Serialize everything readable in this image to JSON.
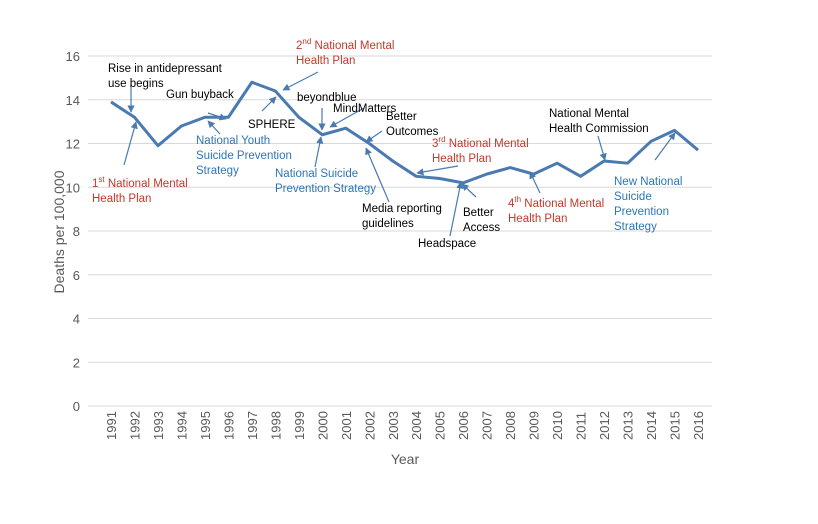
{
  "chart_data": {
    "type": "line",
    "title": "",
    "xlabel": "Year",
    "ylabel": "Deaths per 100,000",
    "ylim": [
      0,
      16
    ],
    "yticks": [
      0,
      2,
      4,
      6,
      8,
      10,
      12,
      14,
      16
    ],
    "grid": true,
    "x": [
      1991,
      1992,
      1993,
      1994,
      1995,
      1996,
      1997,
      1998,
      1999,
      2000,
      2001,
      2002,
      2003,
      2004,
      2005,
      2006,
      2007,
      2008,
      2009,
      2010,
      2011,
      2012,
      2013,
      2014,
      2015,
      2016
    ],
    "values": [
      13.9,
      13.2,
      11.9,
      12.8,
      13.2,
      13.2,
      14.8,
      14.4,
      13.2,
      12.4,
      12.7,
      12.0,
      11.2,
      10.5,
      10.4,
      10.2,
      10.6,
      10.9,
      10.6,
      11.1,
      10.5,
      11.2,
      11.1,
      12.1,
      12.6,
      11.7
    ],
    "line_color": "#4a7ab0",
    "colors": {
      "black": "#000000",
      "red": "#c0392b",
      "blue": "#2e75b6"
    },
    "annotations": [
      {
        "year": 1992,
        "lines": [
          "Rise in antidepressant",
          "use begins"
        ],
        "color": "black"
      },
      {
        "year": 1992,
        "lines": [
          "1st National Mental",
          "Health Plan"
        ],
        "sup": "st",
        "color": "red"
      },
      {
        "year": 1996,
        "lines": [
          "Gun buyback"
        ],
        "color": "black"
      },
      {
        "year": 1995,
        "lines": [
          "National Youth",
          "Suicide Prevention",
          "Strategy"
        ],
        "color": "blue"
      },
      {
        "year": 1998,
        "lines": [
          "SPHERE"
        ],
        "color": "black"
      },
      {
        "year": 1998,
        "lines": [
          "2nd National Mental",
          "Health Plan"
        ],
        "sup": "nd",
        "color": "red"
      },
      {
        "year": 2000,
        "lines": [
          "beyondblue"
        ],
        "color": "black"
      },
      {
        "year": 2000,
        "lines": [
          "MindMatters"
        ],
        "color": "black"
      },
      {
        "year": 2000,
        "lines": [
          "National Suicide",
          "Prevention Strategy"
        ],
        "color": "blue"
      },
      {
        "year": 2002,
        "lines": [
          "Better",
          "Outcomes"
        ],
        "color": "black"
      },
      {
        "year": 2002,
        "lines": [
          "Media reporting",
          "guidelines"
        ],
        "color": "black"
      },
      {
        "year": 2004,
        "lines": [
          "3rd National Mental",
          "Health Plan"
        ],
        "sup": "rd",
        "color": "red"
      },
      {
        "year": 2006,
        "lines": [
          "Headspace"
        ],
        "color": "black"
      },
      {
        "year": 2006,
        "lines": [
          "Better",
          "Access"
        ],
        "color": "black"
      },
      {
        "year": 2009,
        "lines": [
          "4th National Mental",
          "Health Plan"
        ],
        "sup": "th",
        "color": "red"
      },
      {
        "year": 2012,
        "lines": [
          "National Mental",
          "Health Commission"
        ],
        "color": "black"
      },
      {
        "year": 2015,
        "lines": [
          "New National",
          "Suicide",
          "Prevention",
          "Strategy"
        ],
        "color": "blue"
      }
    ]
  }
}
